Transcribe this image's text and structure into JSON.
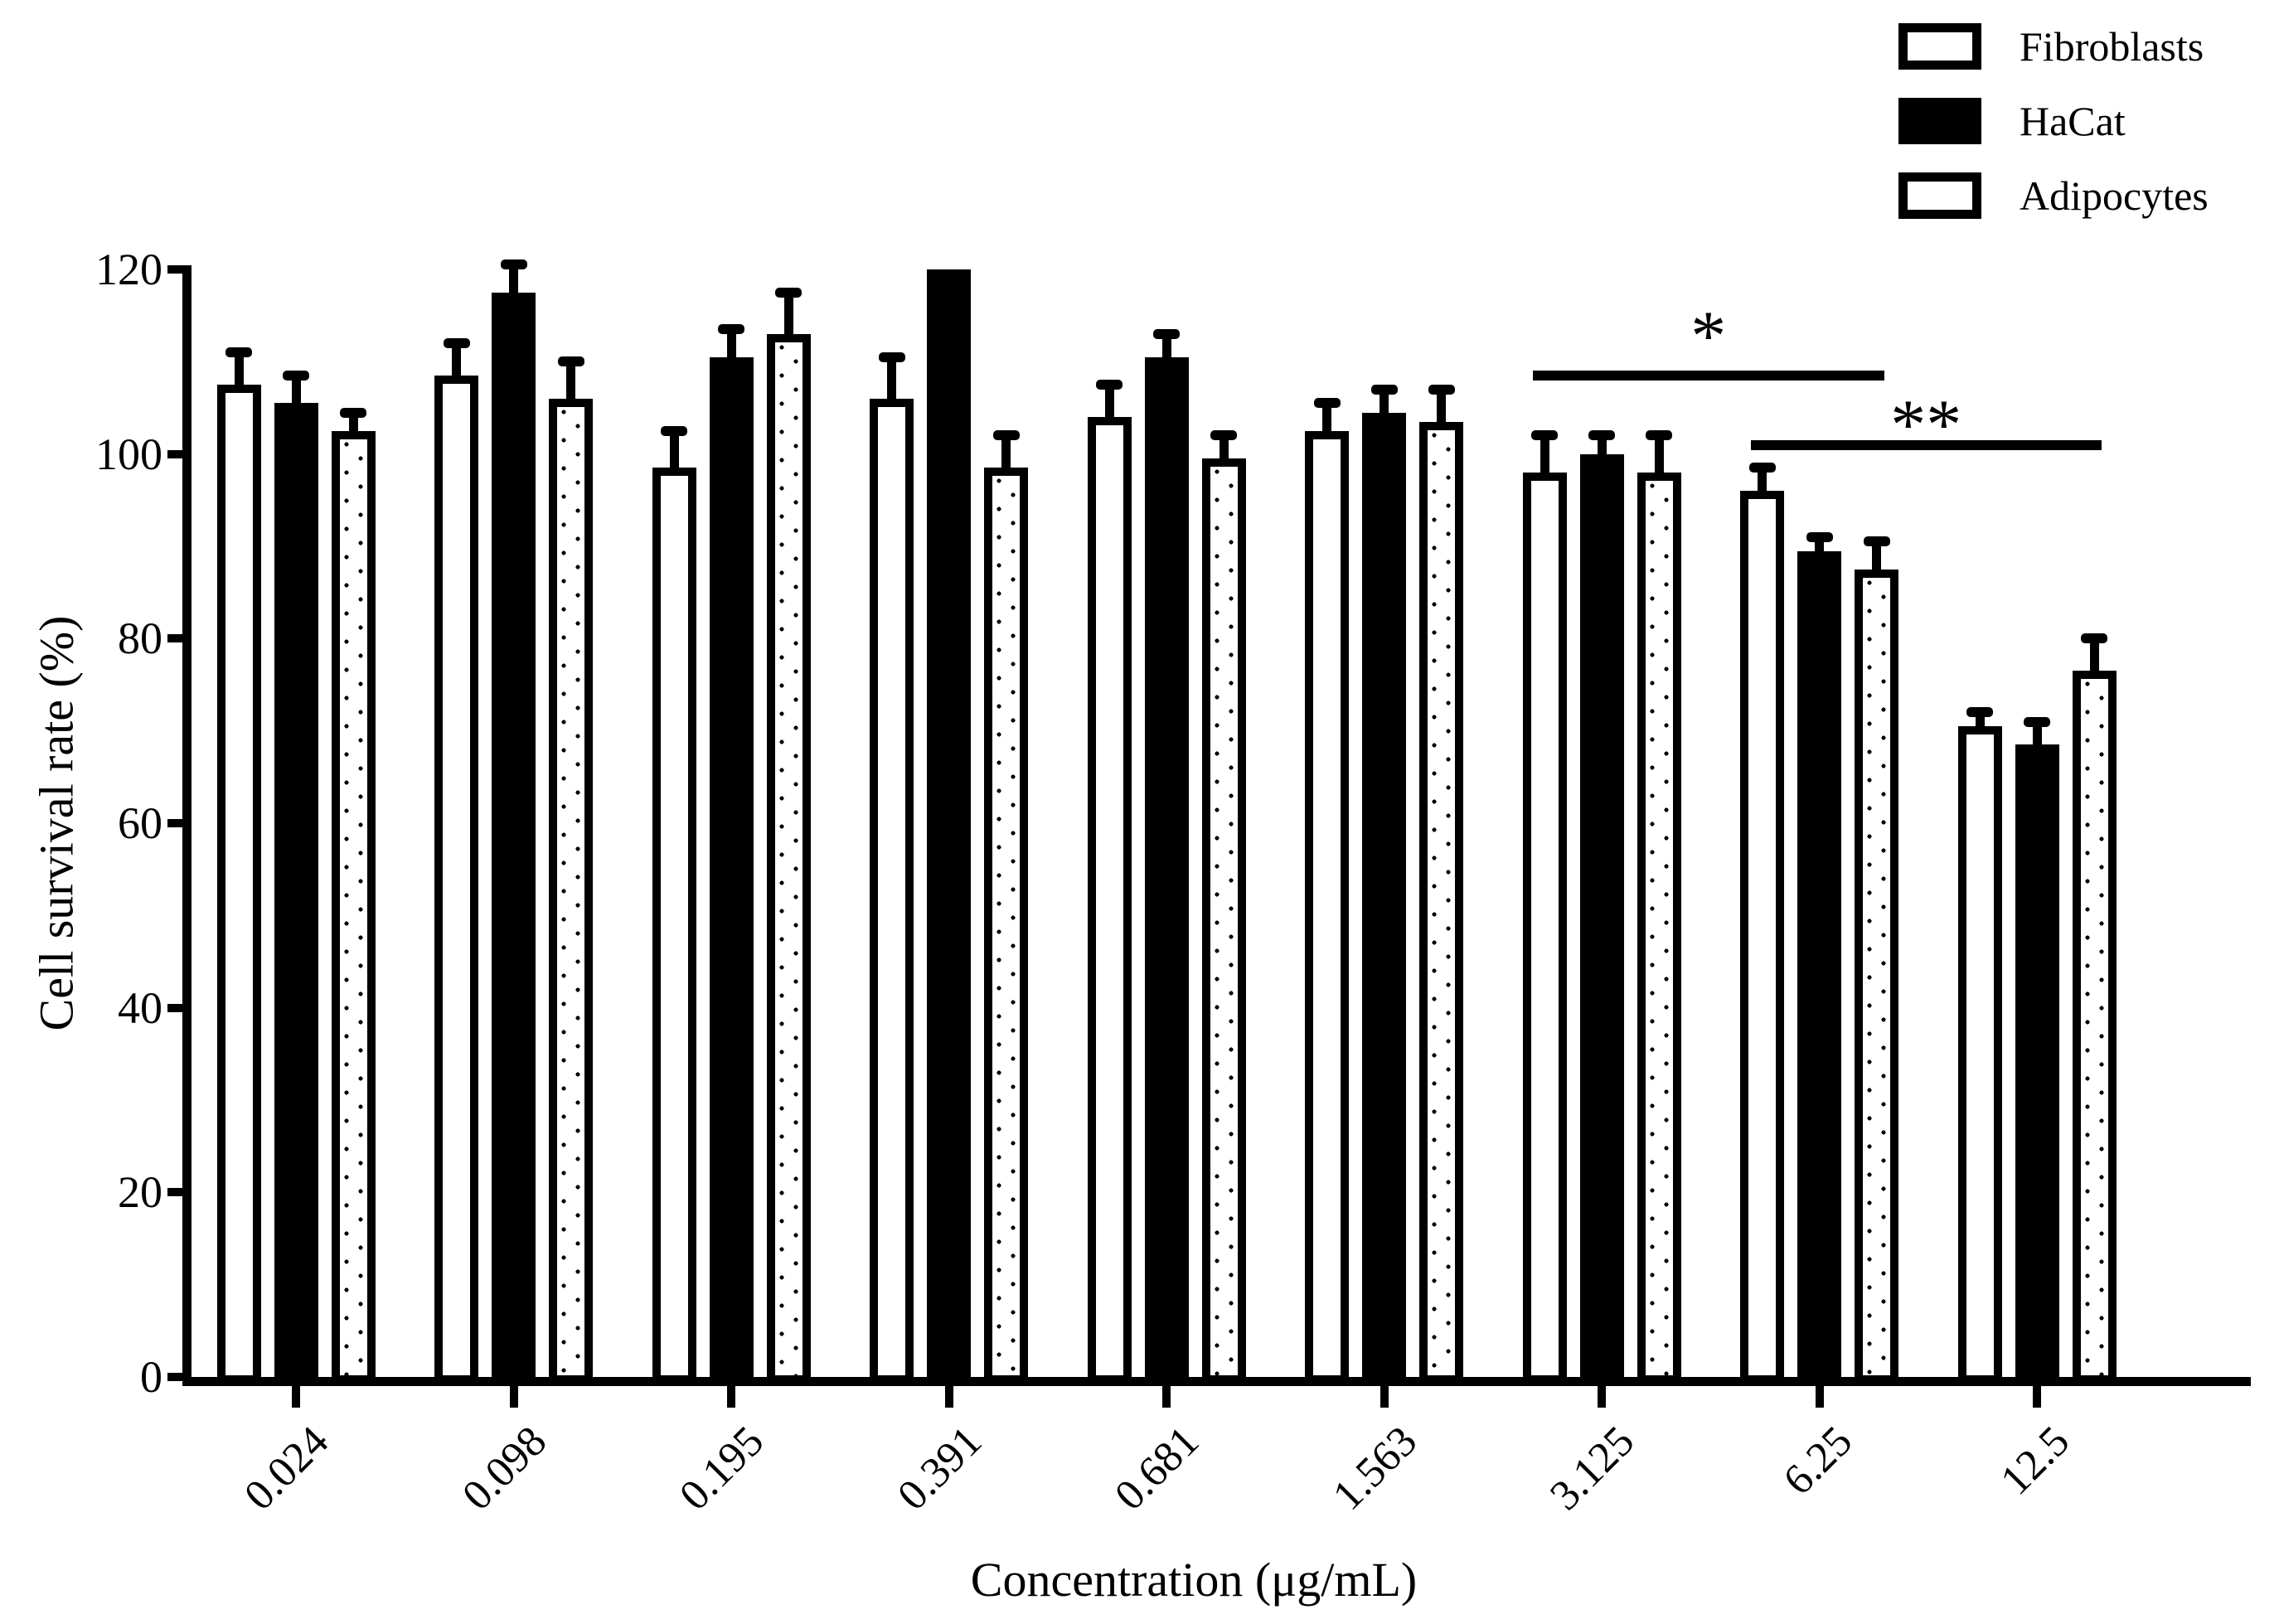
{
  "colors": {
    "foreground": "#000000",
    "background": "#ffffff"
  },
  "chart_data": {
    "type": "bar",
    "title": "",
    "xlabel": "Concentration (μg/mL)",
    "ylabel": "Cell survival rate (%)",
    "ylim": [
      0,
      120
    ],
    "yticks": [
      0,
      20,
      40,
      60,
      80,
      100,
      120
    ],
    "grid": false,
    "legend_position": "top-right",
    "categories": [
      "0.024",
      "0.098",
      "0.195",
      "0.391",
      "0.681",
      "1.563",
      "3.125",
      "6.25",
      "12.5"
    ],
    "series": [
      {
        "name": "Fibroblasts",
        "style": "open",
        "values": [
          107.5,
          108.5,
          98.5,
          106.0,
          104.0,
          102.5,
          98.0,
          96.0,
          70.5
        ],
        "errors": [
          3.5,
          3.5,
          4.0,
          4.5,
          3.5,
          3.0,
          4.0,
          2.5,
          1.5
        ]
      },
      {
        "name": "HaCat",
        "style": "solid",
        "values": [
          105.5,
          117.5,
          110.5,
          120.0,
          110.5,
          104.5,
          100.0,
          89.5,
          68.5
        ],
        "errors": [
          3.0,
          3.0,
          3.0,
          0,
          2.5,
          2.5,
          2.0,
          1.5,
          2.5
        ]
      },
      {
        "name": "Adipocytes",
        "style": "dotted",
        "values": [
          102.5,
          106.0,
          113.0,
          98.5,
          99.5,
          103.5,
          98.0,
          87.5,
          76.5
        ],
        "errors": [
          2.0,
          4.0,
          4.5,
          3.5,
          2.5,
          3.5,
          4.0,
          3.0,
          3.5
        ]
      }
    ],
    "annotations": [
      {
        "label": "*",
        "from_category": "3.125",
        "to_category": "6.25",
        "y_value": 108.5
      },
      {
        "label": "**",
        "from_category": "6.25",
        "to_category": "12.5",
        "y_value": 101.0
      }
    ]
  }
}
